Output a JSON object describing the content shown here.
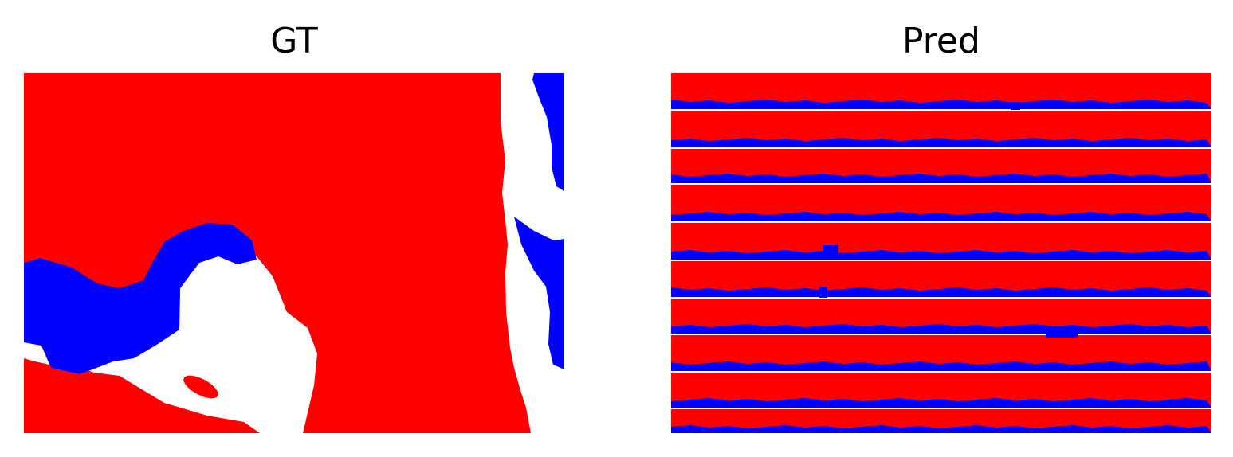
{
  "figure": {
    "panels": [
      {
        "title": "GT"
      },
      {
        "title": "Pred"
      }
    ],
    "colors": {
      "class_a": "#ff0000",
      "class_b": "#0000ff",
      "background": "#ffffff"
    }
  }
}
